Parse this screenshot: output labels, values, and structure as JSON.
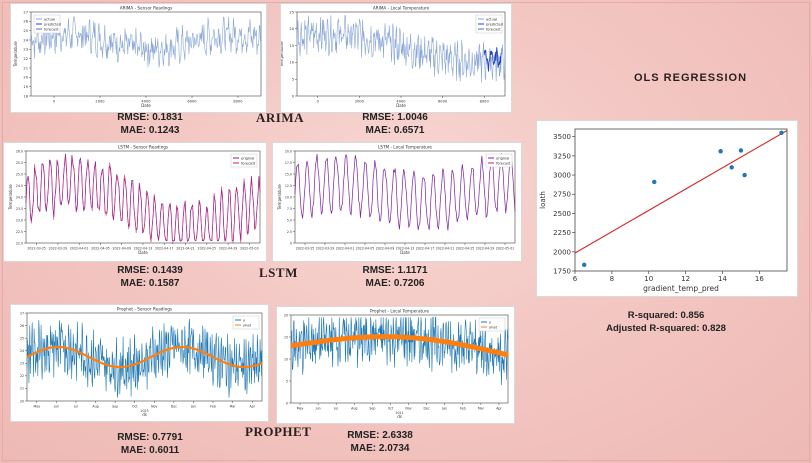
{
  "sections": {
    "arima": "ARIMA",
    "lstm": "LSTM",
    "prophet": "PROPHET",
    "ols_title": "OLS REGRESSION"
  },
  "colors": {
    "actual": "#8aa6d6",
    "predicted": "#1f3fbf",
    "forecast": "#4a6fb8",
    "lstm_line": "#7b1fa2",
    "prophet_obs": "#1f77b4",
    "prophet_pred": "#ff7f0e",
    "ols_point": "#1f77b4",
    "ols_line": "#d62728"
  },
  "metrics": {
    "arima_sensor": {
      "rmse": "RMSE: 0.1831",
      "mae": "MAE: 0.1243"
    },
    "arima_local": {
      "rmse": "RMSE: 1.0046",
      "mae": "MAE: 0.6571"
    },
    "lstm_sensor": {
      "rmse": "RMSE: 0.1439",
      "mae": "MAE: 0.1587"
    },
    "lstm_local": {
      "rmse": "RMSE: 1.1171",
      "mae": "MAE: 0.7206"
    },
    "prophet_sensor": {
      "rmse": "RMSE: 0.7791",
      "mae": "MAE: 0.6011"
    },
    "prophet_local": {
      "rmse": "RMSE: 2.6338",
      "mae": "MAE: 2.0734"
    }
  },
  "ols_stats": {
    "r2": "R-squared: 0.856",
    "adj_r2": "Adjusted R-squared: 0.828"
  },
  "chart_data": [
    {
      "id": "arima_sensor",
      "type": "line",
      "title": "ARIMA - Sensor Readings",
      "xlabel": "Date",
      "ylabel": "Temperature",
      "xlim": [
        0,
        9000
      ],
      "ylim": [
        18,
        27
      ],
      "xticks": [
        "0",
        "2000",
        "4000",
        "6000",
        "8000"
      ],
      "yticks": [
        "18",
        "19",
        "20",
        "21",
        "22",
        "23",
        "24",
        "25",
        "26",
        "27"
      ],
      "legend": [
        "actual",
        "predicted",
        "forecast"
      ],
      "legend_position": "top-left",
      "note": "dense noisy series, values mostly between 21 and 26"
    },
    {
      "id": "arima_local",
      "type": "line",
      "title": "ARIMA - Local Temperature",
      "xlabel": "Date",
      "ylabel": "Temperature",
      "xlim": [
        0,
        9000
      ],
      "ylim": [
        0,
        25
      ],
      "xticks": [
        "0",
        "2000",
        "4000",
        "6000",
        "8000"
      ],
      "yticks": [
        "0",
        "5",
        "10",
        "15",
        "20",
        "25"
      ],
      "legend": [
        "actual",
        "predicted",
        "forecast"
      ],
      "legend_position": "top-right",
      "note": "dense series peaking near 22 around x=2000-3000, declining to ~8-12 by x=8000"
    },
    {
      "id": "lstm_sensor",
      "type": "line",
      "title": "LSTM - Sensor Readings",
      "xlabel": "Date",
      "ylabel": "Temperature",
      "ylim": [
        22.0,
        26.0
      ],
      "xticks": [
        "2022-03-25",
        "2022-03-29",
        "2022-04-01",
        "2022-04-05",
        "2022-04-09",
        "2022-04-13",
        "2022-04-17",
        "2022-04-21",
        "2022-04-25",
        "2022-04-29",
        "2022-05-03"
      ],
      "yticks": [
        "22.0",
        "22.5",
        "23.0",
        "23.5",
        "24.0",
        "24.5",
        "25.0",
        "25.5",
        "26.0"
      ],
      "legend": [
        "original",
        "forecast"
      ],
      "legend_position": "top-right"
    },
    {
      "id": "lstm_local",
      "type": "line",
      "title": "LSTM - Local Temperature",
      "xlabel": "Date",
      "ylabel": "Temperature",
      "ylim": [
        0,
        20
      ],
      "xticks": [
        "2022-03-25",
        "2022-03-29",
        "2022-04-01",
        "2022-04-05",
        "2022-04-09",
        "2022-04-13",
        "2022-04-17",
        "2022-04-21",
        "2022-04-25",
        "2022-04-29",
        "2022-05-01"
      ],
      "yticks": [
        "0",
        "2.5",
        "5.0",
        "7.5",
        "10.0",
        "12.5",
        "15.0",
        "17.5",
        "20.0"
      ],
      "legend": [
        "original",
        "forecast"
      ],
      "legend_position": "top-right"
    },
    {
      "id": "prophet_sensor",
      "type": "line",
      "title": "Prophet - Sensor Readings",
      "xlabel": "ds",
      "ylim": [
        20,
        27
      ],
      "xticks": [
        "May",
        "Jun",
        "Jul",
        "Aug",
        "Sep",
        "Oct",
        "Nov",
        "Dec",
        "Jan",
        "Feb",
        "Mar",
        "Apr"
      ],
      "xticks_sub": "2023",
      "yticks": [
        "20",
        "21",
        "22",
        "23",
        "24",
        "25",
        "26",
        "27"
      ],
      "legend": [
        "y",
        "yhat"
      ],
      "legend_position": "top-right"
    },
    {
      "id": "prophet_local",
      "type": "line",
      "title": "Prophet - Local Temperature",
      "xlabel": "ds",
      "ylim": [
        0,
        20
      ],
      "xticks": [
        "May",
        "Jun",
        "Jul",
        "Aug",
        "Sep",
        "Oct",
        "Nov",
        "Dec",
        "Jan",
        "Feb",
        "Mar",
        "Apr"
      ],
      "xticks_sub": "2011",
      "yticks": [
        "0",
        "5",
        "10",
        "15",
        "20"
      ],
      "legend": [
        "y",
        "yhat"
      ],
      "legend_position": "top-right"
    },
    {
      "id": "ols",
      "type": "scatter",
      "xlabel": "gradient_temp_pred",
      "ylabel": "loath",
      "xlim": [
        6,
        17.5
      ],
      "ylim": [
        1750,
        3600
      ],
      "xticks": [
        "6",
        "8",
        "10",
        "12",
        "14",
        "16"
      ],
      "yticks": [
        "1750",
        "2000",
        "2250",
        "2500",
        "2750",
        "3000",
        "3250",
        "3500"
      ],
      "points": [
        {
          "x": 6.5,
          "y": 1830
        },
        {
          "x": 10.3,
          "y": 2910
        },
        {
          "x": 13.9,
          "y": 3310
        },
        {
          "x": 14.5,
          "y": 3100
        },
        {
          "x": 15.0,
          "y": 3320
        },
        {
          "x": 15.2,
          "y": 3000
        },
        {
          "x": 17.2,
          "y": 3550
        }
      ],
      "fit_line": {
        "x": [
          6,
          17.5
        ],
        "y": [
          1985,
          3580
        ]
      }
    }
  ]
}
